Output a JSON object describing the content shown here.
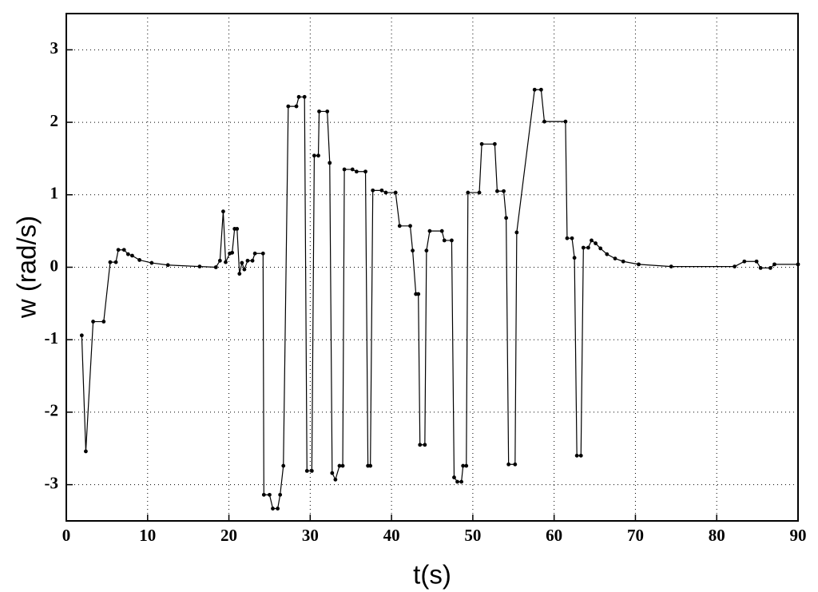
{
  "chart_data": {
    "type": "line",
    "xlabel": "t(s)",
    "ylabel": "w (rad/s)",
    "color": "#000000",
    "grid": true,
    "xlim": [
      0,
      90
    ],
    "xticks": [
      0,
      10,
      20,
      30,
      40,
      50,
      60,
      70,
      80,
      90
    ],
    "ylim": [
      -3.5,
      3.5
    ],
    "yticks": [
      -3,
      -2,
      -1,
      0,
      1,
      2,
      3
    ],
    "x": [
      1.9,
      2.4,
      3.3,
      4.6,
      5.4,
      6.1,
      6.4,
      7.1,
      7.6,
      8.1,
      9.0,
      10.5,
      12.5,
      16.4,
      18.4,
      18.9,
      19.3,
      19.6,
      20.1,
      20.4,
      20.7,
      21.0,
      21.3,
      21.6,
      21.9,
      22.3,
      22.9,
      23.2,
      24.2,
      24.3,
      25.0,
      25.4,
      26.0,
      26.3,
      26.7,
      27.3,
      28.3,
      28.6,
      29.3,
      29.6,
      30.2,
      30.5,
      31.0,
      31.1,
      32.1,
      32.4,
      32.7,
      33.1,
      33.6,
      34.0,
      34.2,
      35.2,
      35.7,
      36.8,
      37.1,
      37.4,
      37.7,
      38.8,
      39.3,
      40.5,
      41.0,
      42.3,
      42.6,
      43.0,
      43.3,
      43.5,
      44.1,
      44.3,
      44.7,
      46.2,
      46.5,
      47.4,
      47.7,
      48.1,
      48.6,
      48.8,
      49.2,
      49.4,
      50.8,
      51.1,
      52.7,
      53.0,
      53.8,
      54.1,
      54.4,
      55.2,
      55.4,
      57.6,
      58.4,
      58.8,
      61.4,
      61.6,
      62.2,
      62.5,
      62.8,
      63.3,
      63.6,
      64.2,
      64.6,
      65.1,
      65.7,
      66.5,
      67.5,
      68.5,
      70.4,
      74.4,
      82.2,
      83.4,
      84.9,
      85.4,
      86.6,
      87.1,
      90.0
    ],
    "values": [
      -0.94,
      -2.54,
      -0.75,
      -0.75,
      0.07,
      0.07,
      0.24,
      0.24,
      0.18,
      0.16,
      0.1,
      0.06,
      0.03,
      0.01,
      0,
      0.09,
      0.77,
      0.07,
      0.19,
      0.2,
      0.53,
      0.53,
      -0.09,
      0.06,
      -0.03,
      0.09,
      0.09,
      0.19,
      0.19,
      -3.14,
      -3.14,
      -3.33,
      -3.33,
      -3.14,
      -2.74,
      2.22,
      2.22,
      2.35,
      2.35,
      -2.81,
      -2.81,
      1.54,
      1.54,
      2.15,
      2.15,
      1.44,
      -2.84,
      -2.93,
      -2.74,
      -2.74,
      1.35,
      1.35,
      1.32,
      1.32,
      -2.74,
      -2.74,
      1.06,
      1.06,
      1.03,
      1.03,
      0.57,
      0.57,
      0.23,
      -0.37,
      -0.37,
      -2.45,
      -2.45,
      0.23,
      0.5,
      0.5,
      0.37,
      0.37,
      -2.9,
      -2.96,
      -2.96,
      -2.74,
      -2.74,
      1.03,
      1.03,
      1.7,
      1.7,
      1.05,
      1.05,
      0.68,
      -2.72,
      -2.72,
      0.48,
      2.45,
      2.45,
      2.01,
      2.01,
      0.4,
      0.4,
      0.13,
      -2.6,
      -2.6,
      0.27,
      0.27,
      0.37,
      0.33,
      0.26,
      0.18,
      0.12,
      0.08,
      0.04,
      0.01,
      0.01,
      0.08,
      0.08,
      -0.01,
      -0.01,
      0.04,
      0.04
    ]
  }
}
